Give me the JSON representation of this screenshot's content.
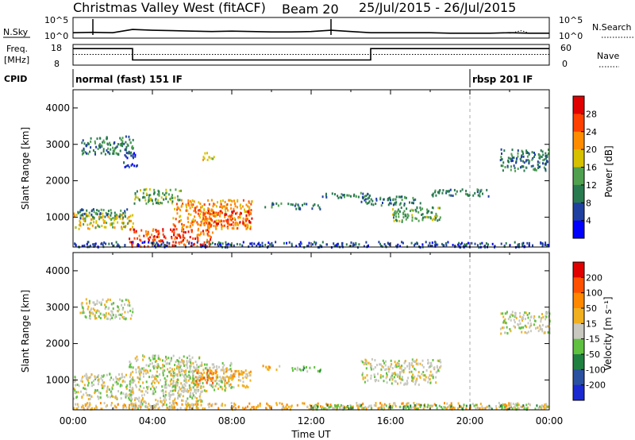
{
  "header": {
    "station": "Christmas Valley West (fitACF)",
    "beam": "Beam 20",
    "date_range": "25/Jul/2015 - 26/Jul/2015"
  },
  "chart_data": [
    {
      "id": "noise",
      "type": "line",
      "left_label": "N.Sky",
      "right_label": "N.Search",
      "left_ticks": [
        "10^5",
        "10^0"
      ],
      "right_ticks": [
        "10^5",
        "10^0"
      ],
      "series": [
        {
          "name": "N.Sky",
          "style": "solid",
          "x": [
            0,
            1,
            2,
            3,
            4,
            5,
            6,
            7,
            8,
            9,
            10,
            11,
            12,
            13,
            14,
            15,
            16,
            17,
            18,
            19,
            20,
            21,
            22,
            23,
            24
          ],
          "y": [
            1.3,
            1.4,
            1.3,
            2.1,
            1.9,
            1.8,
            1.7,
            1.6,
            1.7,
            1.6,
            1.5,
            1.5,
            1.6,
            1.9,
            1.6,
            1.3,
            1.3,
            1.3,
            1.3,
            1.2,
            1.2,
            1.2,
            1.3,
            1.2,
            1.2
          ]
        },
        {
          "name": "N.Search",
          "style": "dotted",
          "x": [
            22,
            22.6,
            23
          ],
          "y": [
            1.2,
            1.8,
            1.2
          ]
        }
      ],
      "spikes_x": [
        1.0,
        13.0
      ]
    },
    {
      "id": "frequency",
      "type": "line",
      "left_label": "Freq. [MHz]",
      "right_label": "Nave",
      "left_ticks": [
        "18",
        "8"
      ],
      "right_ticks": [
        "60",
        "0"
      ],
      "ylim": [
        8,
        18
      ],
      "series": [
        {
          "name": "Freq",
          "style": "solid",
          "x": [
            0,
            3,
            3,
            15,
            15,
            24
          ],
          "y": [
            16,
            16,
            10.5,
            10.5,
            16,
            16
          ]
        },
        {
          "name": "Nave",
          "style": "dotted",
          "x": [
            0,
            24
          ],
          "y": [
            13.2,
            13.2
          ]
        }
      ]
    },
    {
      "id": "cpid",
      "type": "table",
      "label": "CPID",
      "segments": [
        {
          "start": 0,
          "end": 20,
          "text": "normal (fast) 151 IF"
        },
        {
          "start": 20,
          "end": 24,
          "text": "rbsp 201 IF"
        }
      ]
    },
    {
      "id": "power",
      "type": "heatmap",
      "ylabel": "Slant Range [km]",
      "xlim": [
        0,
        24
      ],
      "ylim": [
        180,
        4500
      ],
      "yticks": [
        1000,
        2000,
        3000,
        4000
      ],
      "colorbar": {
        "label": "Power [dB]",
        "ticks": [
          "4",
          "8",
          "12",
          "16",
          "20",
          "24",
          "28"
        ],
        "colors": [
          "#0000ff",
          "#2040a0",
          "#2a7a50",
          "#50a050",
          "#d6c000",
          "#ff8c00",
          "#ff4000",
          "#e00000"
        ]
      },
      "regions": [
        {
          "x": [
            0.0,
            3.0
          ],
          "y": [
            700,
            1150
          ],
          "level": 4
        },
        {
          "x": [
            0.2,
            2.8
          ],
          "y": [
            1000,
            1250
          ],
          "level": 2
        },
        {
          "x": [
            0.3,
            3.0
          ],
          "y": [
            2750,
            3250
          ],
          "level": 2
        },
        {
          "x": [
            2.5,
            3.2
          ],
          "y": [
            2400,
            2800
          ],
          "level": 1
        },
        {
          "x": [
            2.8,
            7.0
          ],
          "y": [
            220,
            700
          ],
          "level": 6
        },
        {
          "x": [
            3.0,
            5.5
          ],
          "y": [
            1400,
            1800
          ],
          "level": 3
        },
        {
          "x": [
            5.0,
            9.0
          ],
          "y": [
            700,
            1500
          ],
          "level": 5
        },
        {
          "x": [
            6.5,
            9.0
          ],
          "y": [
            800,
            1200
          ],
          "level": 6
        },
        {
          "x": [
            6.5,
            7.2
          ],
          "y": [
            2600,
            2800
          ],
          "level": 4
        },
        {
          "x": [
            9.5,
            10.5
          ],
          "y": [
            1300,
            1420
          ],
          "level": 2
        },
        {
          "x": [
            10.8,
            12.5
          ],
          "y": [
            1250,
            1400
          ],
          "level": 2
        },
        {
          "x": [
            12.5,
            15.0
          ],
          "y": [
            1550,
            1700
          ],
          "level": 2
        },
        {
          "x": [
            14.5,
            17.5
          ],
          "y": [
            1350,
            1600
          ],
          "level": 2
        },
        {
          "x": [
            16.0,
            18.5
          ],
          "y": [
            900,
            1300
          ],
          "level": 3
        },
        {
          "x": [
            18.0,
            21.0
          ],
          "y": [
            1600,
            1800
          ],
          "level": 2
        },
        {
          "x": [
            21.5,
            24.0
          ],
          "y": [
            2300,
            2900
          ],
          "level": 2
        },
        {
          "x": [
            0.0,
            24.0
          ],
          "y": [
            200,
            350
          ],
          "level": 1
        }
      ],
      "vertical_marker_x": 20
    },
    {
      "id": "velocity",
      "type": "heatmap",
      "ylabel": "Slant Range [km]",
      "xlabel": "Time UT",
      "xlim": [
        0,
        24
      ],
      "ylim": [
        180,
        4500
      ],
      "xticks": [
        "00:00",
        "04:00",
        "08:00",
        "12:00",
        "16:00",
        "20:00",
        "00:00"
      ],
      "yticks": [
        1000,
        2000,
        3000,
        4000
      ],
      "colorbar": {
        "label": "Velocity [m s⁻¹]",
        "ticks": [
          "200",
          "100",
          "50",
          "15",
          "-15",
          "-50",
          "-100",
          "-200"
        ],
        "colors": [
          "#1a2ad0",
          "#2a50a0",
          "#208040",
          "#60c040",
          "#c8c8c0",
          "#f0b020",
          "#ff8800",
          "#ff5000",
          "#e00000"
        ]
      },
      "regions": [
        {
          "x": [
            0.0,
            3.0
          ],
          "y": [
            500,
            1200
          ],
          "level": 4
        },
        {
          "x": [
            0.3,
            3.0
          ],
          "y": [
            2700,
            3250
          ],
          "level": 4
        },
        {
          "x": [
            2.8,
            6.5
          ],
          "y": [
            250,
            1700
          ],
          "level": 4
        },
        {
          "x": [
            5.0,
            8.0
          ],
          "y": [
            700,
            1500
          ],
          "level": 4
        },
        {
          "x": [
            7.5,
            9.0
          ],
          "y": [
            800,
            1300
          ],
          "level": 5
        },
        {
          "x": [
            6.0,
            7.2
          ],
          "y": [
            900,
            1300
          ],
          "level": 6
        },
        {
          "x": [
            9.5,
            10.5
          ],
          "y": [
            1300,
            1420
          ],
          "level": 5
        },
        {
          "x": [
            11.0,
            12.5
          ],
          "y": [
            1250,
            1400
          ],
          "level": 3
        },
        {
          "x": [
            14.5,
            18.5
          ],
          "y": [
            900,
            1600
          ],
          "level": 4
        },
        {
          "x": [
            21.5,
            24.0
          ],
          "y": [
            2300,
            2900
          ],
          "level": 4
        },
        {
          "x": [
            0.0,
            24.0
          ],
          "y": [
            220,
            400
          ],
          "level": 5
        },
        {
          "x": [
            12.0,
            24.0
          ],
          "y": [
            220,
            350
          ],
          "level": 3
        }
      ],
      "vertical_marker_x": 20
    }
  ]
}
